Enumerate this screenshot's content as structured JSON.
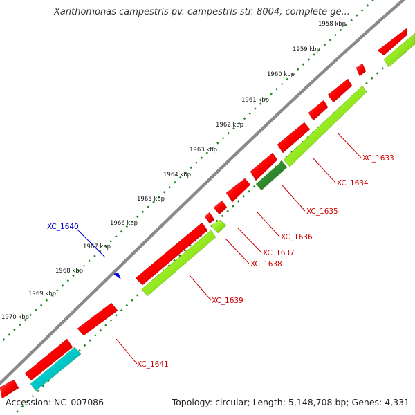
{
  "title": "Xanthomonas campestris pv. campestris str. 8004, complete ge...",
  "footer": {
    "accession": "Accession: NC_007086",
    "summary": "Topology: circular; Length: 5,148,708 bp; Genes: 4,331"
  },
  "colors": {
    "backbone": "#808080",
    "forward": "#ff0000",
    "reverse": "#99ee22",
    "reverse_dark": "#228822",
    "teal": "#00cccc",
    "ticks": "#228822",
    "label_red": "#cc0000",
    "label_blue": "#0000cc"
  },
  "ticks": [
    "1958 kbp",
    "1959 kbp",
    "1960 kbp",
    "1961 kbp",
    "1962 kbp",
    "1963 kbp",
    "1964 kbp",
    "1965 kbp",
    "1966 kbp",
    "1967 kbp",
    "1968 kbp",
    "1969 kbp",
    "1970 kbp"
  ],
  "genes": [
    "XC_1633",
    "XC_1634",
    "XC_1635",
    "XC_1636",
    "XC_1637",
    "XC_1638",
    "XC_1639",
    "XC_1640",
    "XC_1641"
  ]
}
